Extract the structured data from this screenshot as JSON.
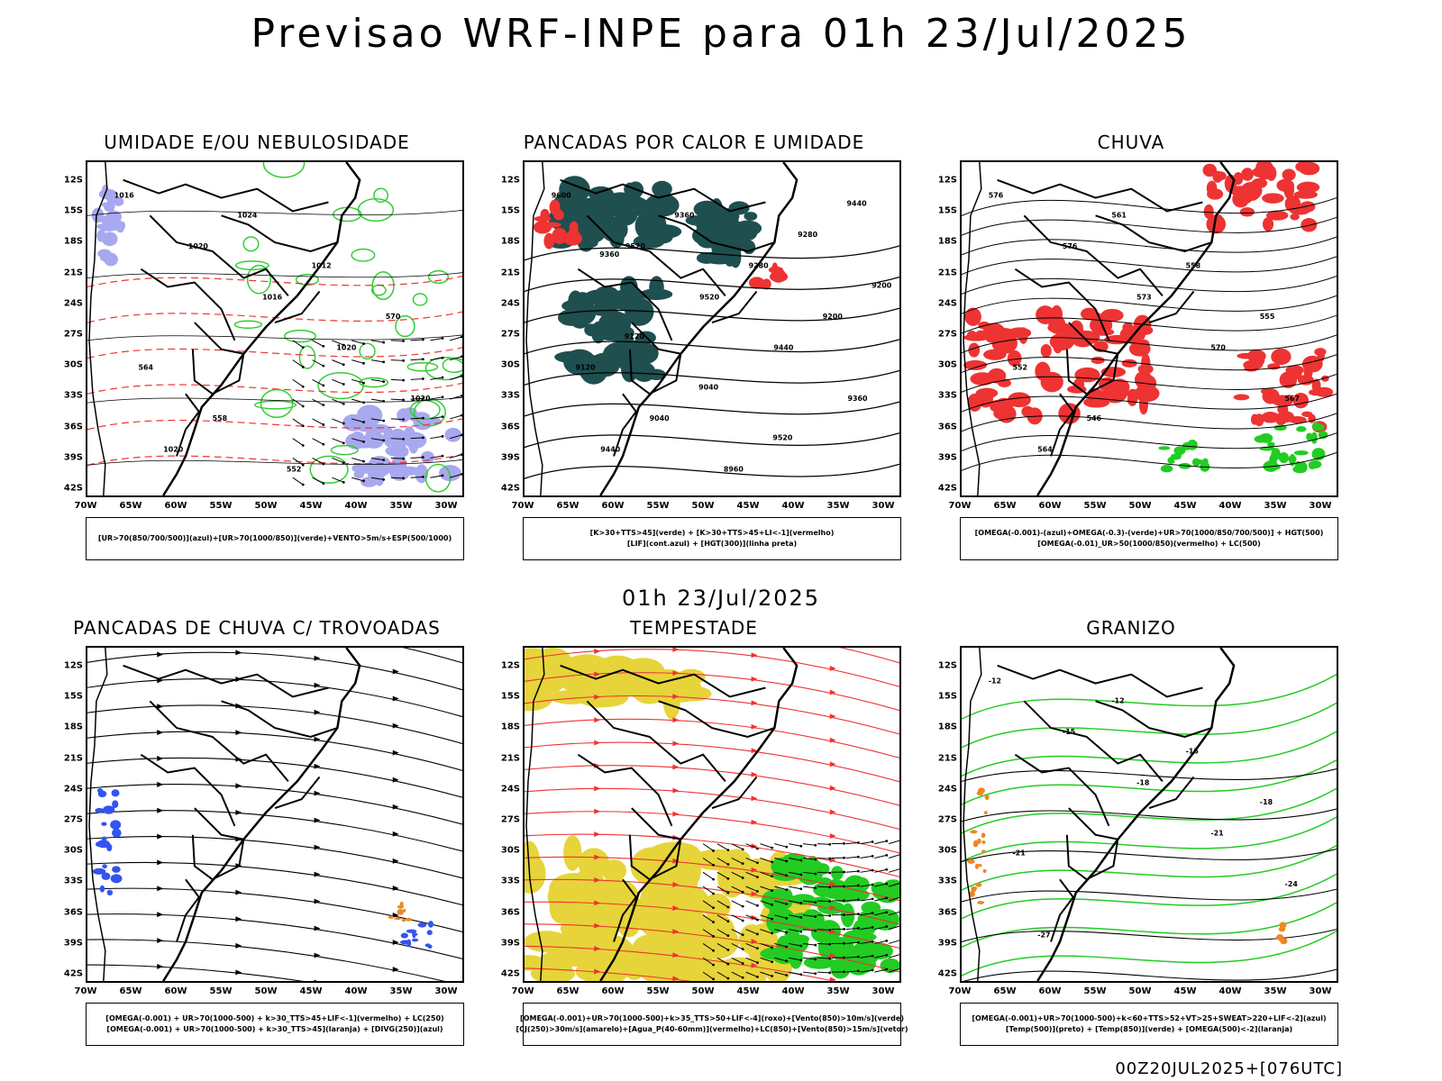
{
  "title": "Previsao WRF-INPE  para 01h 23/Jul/2025",
  "mid_date": "01h 23/Jul/2025",
  "footer": "00Z20JUL2025+[076UTC]",
  "lat_ticks": [
    "12S",
    "15S",
    "18S",
    "21S",
    "24S",
    "27S",
    "30S",
    "33S",
    "36S",
    "39S",
    "42S"
  ],
  "lon_ticks": [
    "70W",
    "65W",
    "60W",
    "55W",
    "50W",
    "45W",
    "40W",
    "35W",
    "30W"
  ],
  "colors": {
    "humidity_blue": "#a8a8f0",
    "humidity_green": "#33cc33",
    "red": "#ee3333",
    "teal": "#1f4f4f",
    "yellow": "#e6d43a",
    "green": "#22cc22",
    "blue": "#3355ee",
    "orange": "#ee8822"
  },
  "panels": [
    {
      "id": "umidade",
      "title": "UMIDADE E/OU NEBULOSIDADE",
      "legend": [
        "[UR>70(850/700/500)](azul)+[UR>70(1000/850)](verde)+VENTO>5m/s+ESP(500/1000)"
      ],
      "labels": [
        "1016",
        "1020",
        "1016",
        "1020",
        "1020",
        "1020",
        "1024",
        "1012",
        "570",
        "564",
        "558",
        "552"
      ]
    },
    {
      "id": "pancadas-calor",
      "title": "PANCADAS POR CALOR E UMIDADE",
      "legend": [
        "[K>30+TTS>45](verde) + [K>30+TTS>45+LI<-1](vermelho)",
        "[LIF](cont.azul) + [HGT(300)](linha preta)"
      ],
      "labels": [
        "9600",
        "9520",
        "9520",
        "9440",
        "9360",
        "9440",
        "9360",
        "9280",
        "9200",
        "9120",
        "9040",
        "8960",
        "9280",
        "9200",
        "9120",
        "9040",
        "9520",
        "9440",
        "9360"
      ]
    },
    {
      "id": "chuva",
      "title": "CHUVA",
      "legend": [
        "[OMEGA(-0.001)-(azul)+OMEGA(-0.3)-(verde)+UR>70(1000/850/700/500)] + HGT(500)",
        "[OMEGA(-0.01)_UR>50(1000/850)(vermelho) + LC(500)"
      ],
      "labels": [
        "576",
        "576",
        "573",
        "570",
        "567",
        "564",
        "561",
        "558",
        "555",
        "552",
        "546"
      ]
    },
    {
      "id": "pancadas-trovoadas",
      "title": "PANCADAS DE CHUVA C/ TROVOADAS",
      "legend": [
        "[OMEGA(-0.001) + UR>70(1000-500) + k>30_TTS>45+LIF<-1](vermelho) + LC(250)",
        "[OMEGA(-0.001) + UR>70(1000-500) + k>30_TTS>45](laranja) + [DIVG(250)](azul)"
      ],
      "labels": []
    },
    {
      "id": "tempestade",
      "title": "TEMPESTADE",
      "legend": [
        "[OMEGA(-0.001)+UR>70(1000-500)+k>35_TTS>50+LIF<-4](roxo)+[Vento(850)>10m/s](verde)",
        "[CJ(250)>30m/s](amarelo)+[Agua_P(40-60mm)](vermelho)+LC(850)+[Vento(850)>15m/s](vetor)"
      ],
      "labels": []
    },
    {
      "id": "granizo",
      "title": "GRANIZO",
      "legend": [
        "[OMEGA(-0.001)+UR>70(1000-500)+k<60+TTS>52+VT>25+SWEAT>220+LIF<-2](azul)",
        "[Temp(500)](preto) + [Temp(850)](verde) + [OMEGA(500)<-2](laranja)"
      ],
      "labels": [
        "-12",
        "-15",
        "-18",
        "-21",
        "-24",
        "-27",
        "-12",
        "-15",
        "-18",
        "-21"
      ]
    }
  ]
}
